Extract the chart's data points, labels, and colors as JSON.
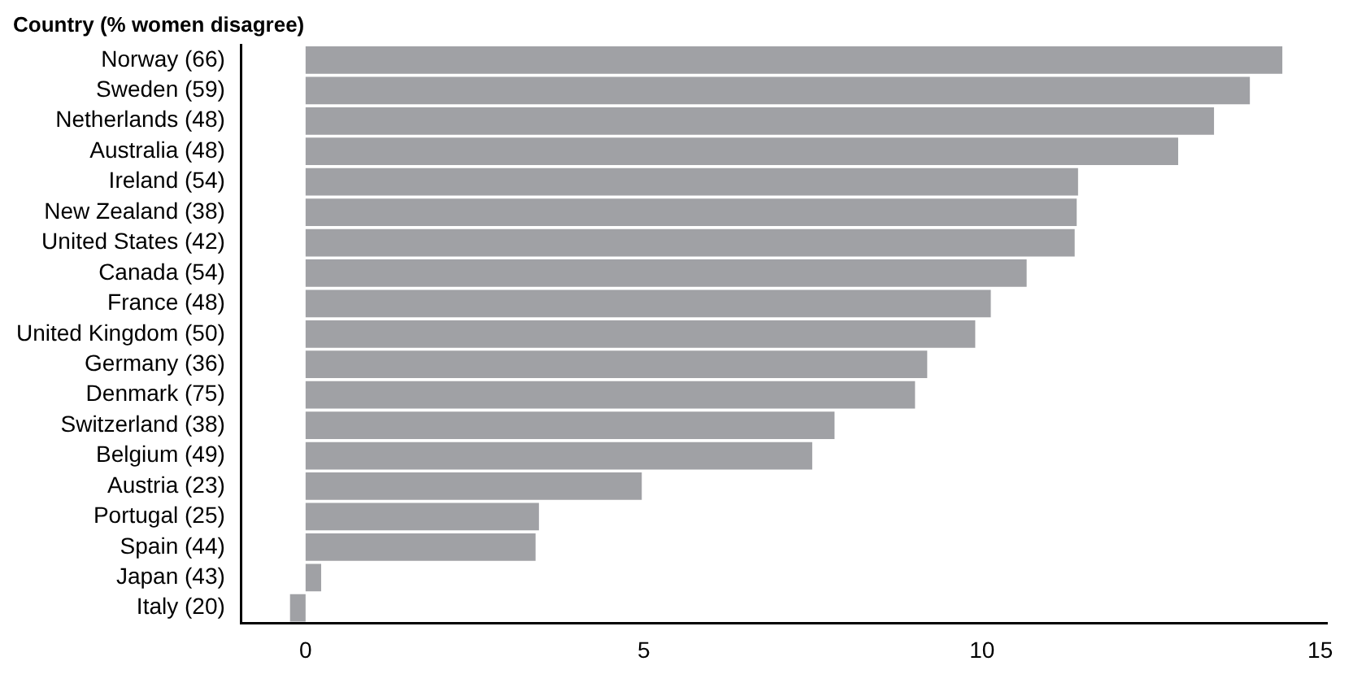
{
  "chart_data": {
    "type": "bar",
    "orientation": "horizontal",
    "ylabel": "Country (% women disagree)",
    "categories": [
      "Norway (66)",
      "Sweden (59)",
      "Netherlands (48)",
      "Australia (48)",
      "Ireland (54)",
      "New Zealand (38)",
      "United States (42)",
      "Canada (54)",
      "France (48)",
      "United Kingdom (50)",
      "Germany (36)",
      "Denmark (75)",
      "Switzerland (38)",
      "Belgium (49)",
      "Austria (23)",
      "Portugal (25)",
      "Spain (44)",
      "Japan (43)",
      "Italy (20)"
    ],
    "values": [
      14.44,
      13.96,
      13.43,
      12.9,
      11.42,
      11.4,
      11.37,
      10.66,
      10.13,
      9.9,
      9.19,
      9.01,
      7.82,
      7.49,
      4.97,
      3.45,
      3.4,
      0.23,
      -0.23
    ],
    "color": "#a0a1a5",
    "xlim": [
      -0.95,
      15.1
    ],
    "xticks": [
      0,
      5,
      10,
      15
    ],
    "grid": false,
    "legend": false
  }
}
